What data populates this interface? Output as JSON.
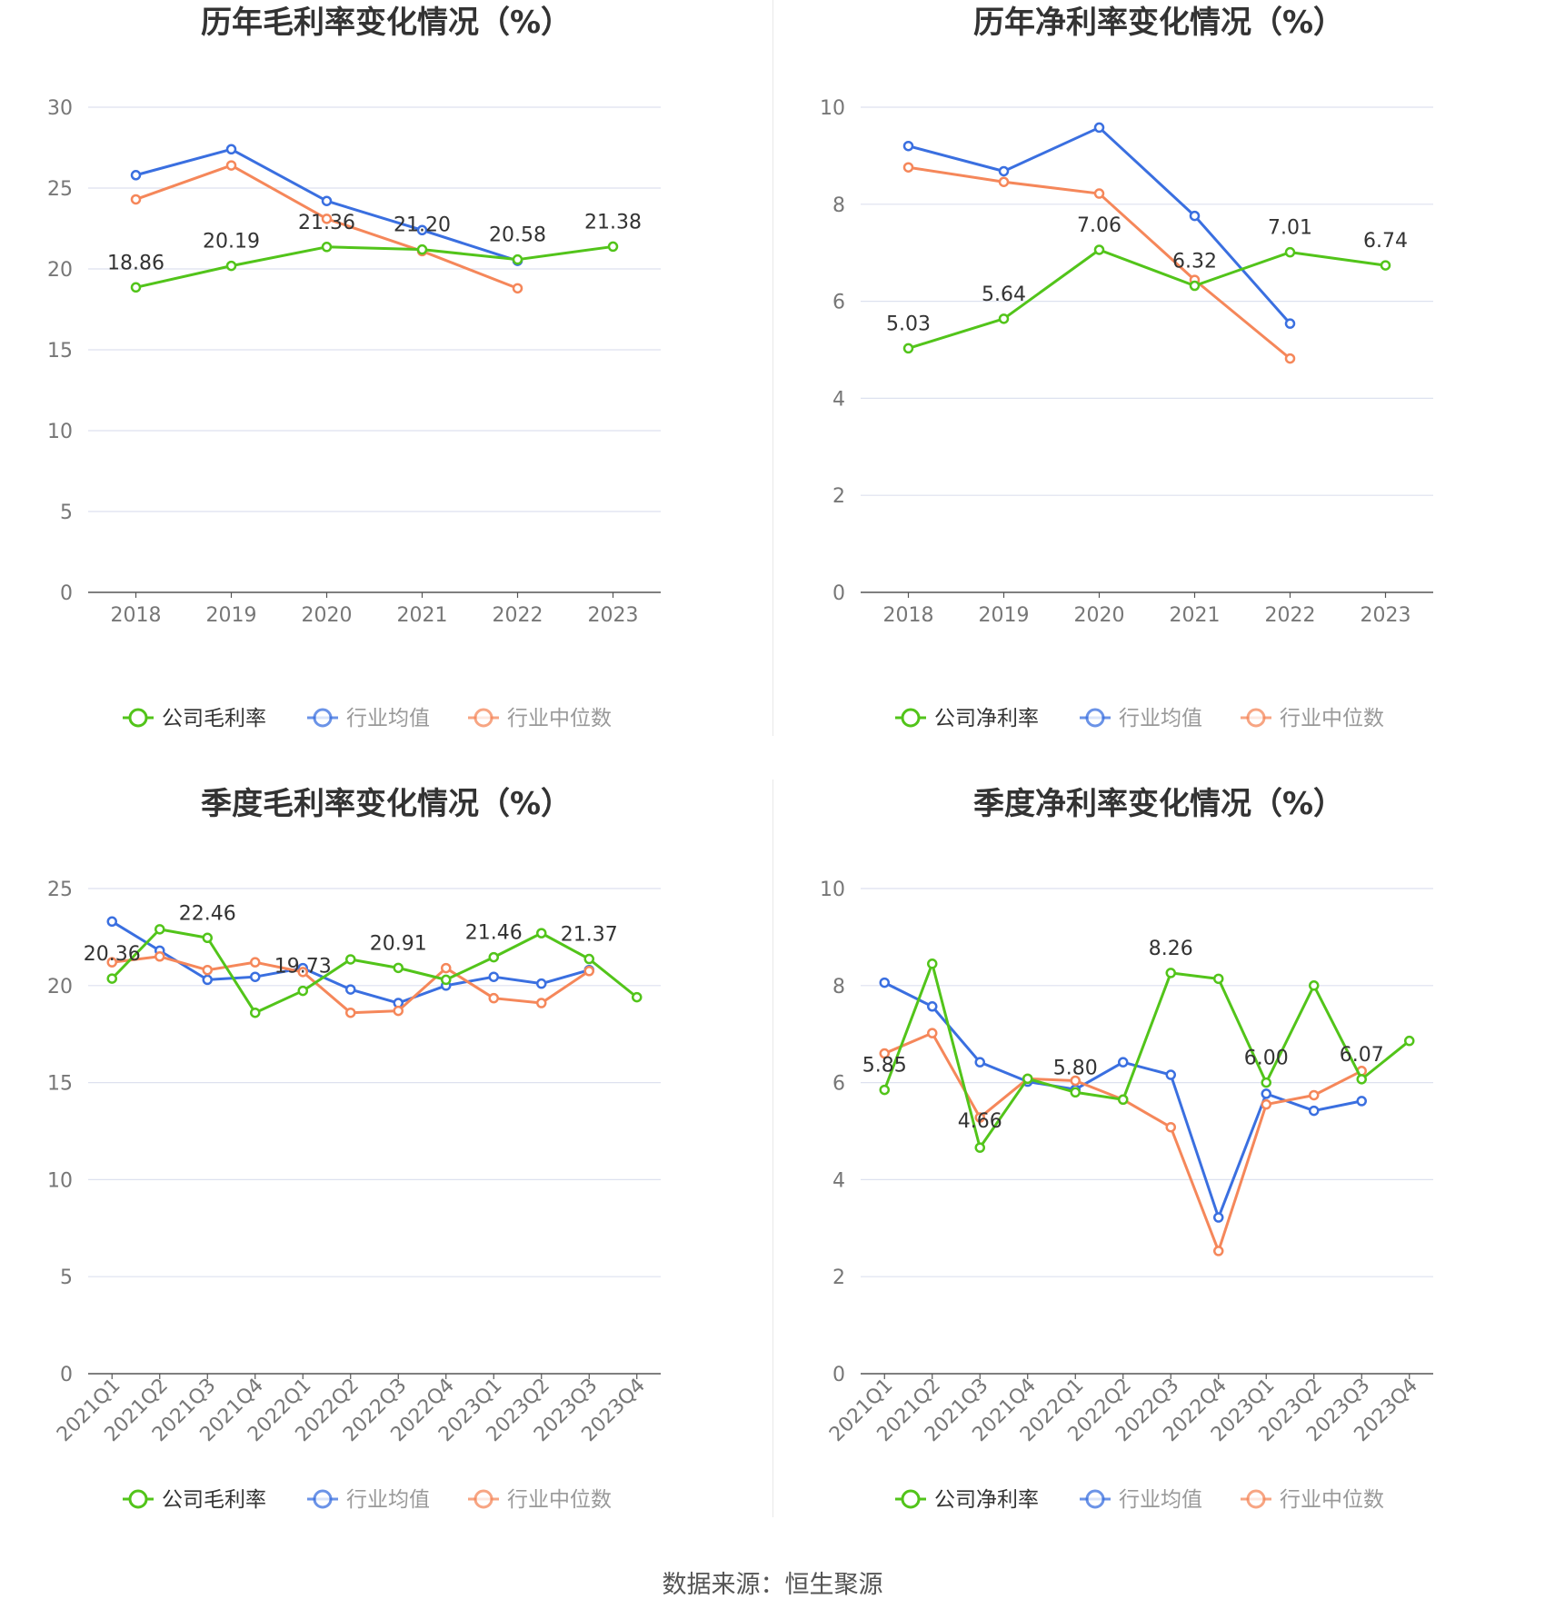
{
  "source": "数据来源：恒生聚源",
  "colors": {
    "company": "#52c41a",
    "avg": "#3a6fe0",
    "median": "#f5875a",
    "grid": "#dde1ef",
    "axis": "#555555"
  },
  "chart_data": [
    {
      "type": "line",
      "title": "历年毛利率变化情况（%）",
      "categories": [
        "2018",
        "2019",
        "2020",
        "2021",
        "2022",
        "2023"
      ],
      "ylim": [
        0,
        30
      ],
      "yticks": [
        0,
        5,
        10,
        15,
        20,
        25,
        30
      ],
      "grid": true,
      "legend": "bottom",
      "series": [
        {
          "name": "公司毛利率",
          "role": "company",
          "values": [
            18.86,
            20.19,
            21.36,
            21.2,
            20.58,
            21.38
          ],
          "labels": [
            "18.86",
            "20.19",
            "21.36",
            "21.20",
            "20.58",
            "21.38"
          ]
        },
        {
          "name": "行业均值",
          "role": "avg",
          "values": [
            25.8,
            27.4,
            24.2,
            22.4,
            20.5,
            null
          ]
        },
        {
          "name": "行业中位数",
          "role": "median",
          "values": [
            24.3,
            26.4,
            23.1,
            21.1,
            18.8,
            null
          ]
        }
      ]
    },
    {
      "type": "line",
      "title": "历年净利率变化情况（%）",
      "categories": [
        "2018",
        "2019",
        "2020",
        "2021",
        "2022",
        "2023"
      ],
      "ylim": [
        0,
        10
      ],
      "yticks": [
        0,
        2,
        4,
        6,
        8,
        10
      ],
      "grid": true,
      "legend": "bottom",
      "series": [
        {
          "name": "公司净利率",
          "role": "company",
          "values": [
            5.03,
            5.64,
            7.06,
            6.32,
            7.01,
            6.74
          ],
          "labels": [
            "5.03",
            "5.64",
            "7.06",
            "6.32",
            "7.01",
            "6.74"
          ]
        },
        {
          "name": "行业均值",
          "role": "avg",
          "values": [
            9.2,
            8.68,
            9.58,
            7.76,
            5.54,
            null
          ]
        },
        {
          "name": "行业中位数",
          "role": "median",
          "values": [
            8.76,
            8.46,
            8.22,
            6.44,
            4.82,
            null
          ]
        }
      ]
    },
    {
      "type": "line",
      "title": "季度毛利率变化情况（%）",
      "categories": [
        "2021Q1",
        "2021Q2",
        "2021Q3",
        "2021Q4",
        "2022Q1",
        "2022Q2",
        "2022Q3",
        "2022Q4",
        "2023Q1",
        "2023Q2",
        "2023Q3",
        "2023Q4"
      ],
      "ylim": [
        0,
        25
      ],
      "yticks": [
        0,
        5,
        10,
        15,
        20,
        25
      ],
      "grid": true,
      "legend": "bottom",
      "series": [
        {
          "name": "公司毛利率",
          "role": "company",
          "values": [
            20.36,
            22.9,
            22.46,
            18.6,
            19.73,
            21.35,
            20.91,
            20.3,
            21.46,
            22.7,
            21.37,
            19.4
          ],
          "labels": [
            "20.36",
            "",
            "22.46",
            "",
            "19.73",
            "",
            "20.91",
            "",
            "21.46",
            "",
            "21.37",
            ""
          ]
        },
        {
          "name": "行业均值",
          "role": "avg",
          "values": [
            23.3,
            21.8,
            20.3,
            20.45,
            20.9,
            19.8,
            19.1,
            20.0,
            20.45,
            20.1,
            20.8,
            null
          ]
        },
        {
          "name": "行业中位数",
          "role": "median",
          "values": [
            21.2,
            21.5,
            20.8,
            21.2,
            20.7,
            18.6,
            18.7,
            20.9,
            19.35,
            19.1,
            20.75,
            null
          ]
        }
      ]
    },
    {
      "type": "line",
      "title": "季度净利率变化情况（%）",
      "categories": [
        "2021Q1",
        "2021Q2",
        "2021Q3",
        "2021Q4",
        "2022Q1",
        "2022Q2",
        "2022Q3",
        "2022Q4",
        "2023Q1",
        "2023Q2",
        "2023Q3",
        "2023Q4"
      ],
      "ylim": [
        0,
        10
      ],
      "yticks": [
        0,
        2,
        4,
        6,
        8,
        10
      ],
      "grid": true,
      "legend": "bottom",
      "series": [
        {
          "name": "公司净利率",
          "role": "company",
          "values": [
            5.85,
            8.45,
            4.66,
            6.08,
            5.8,
            5.65,
            8.26,
            8.14,
            6.0,
            8.0,
            6.07,
            6.86
          ],
          "labels": [
            "5.85",
            "",
            "4.66",
            "",
            "5.80",
            "",
            "8.26",
            "",
            "6.00",
            "",
            "6.07",
            ""
          ]
        },
        {
          "name": "行业均值",
          "role": "avg",
          "values": [
            8.06,
            7.57,
            6.42,
            6.02,
            5.86,
            6.42,
            6.16,
            3.22,
            5.77,
            5.42,
            5.62,
            null
          ]
        },
        {
          "name": "行业中位数",
          "role": "median",
          "values": [
            6.6,
            7.02,
            5.28,
            6.08,
            6.04,
            5.65,
            5.08,
            2.53,
            5.55,
            5.74,
            6.24,
            null
          ]
        }
      ]
    }
  ]
}
